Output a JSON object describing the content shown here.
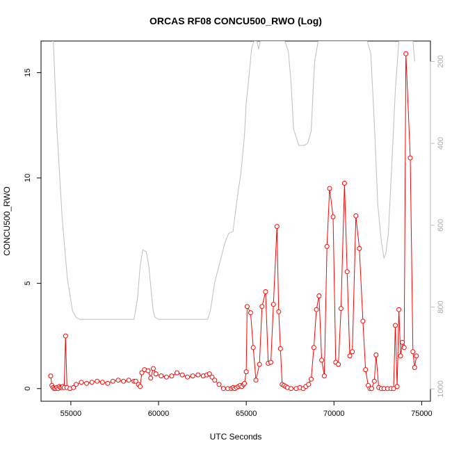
{
  "chart_data": {
    "type": "line",
    "title": "ORCAS RF08 CONCU500_RWO (Log)",
    "xlabel": "UTC Seconds",
    "ylabel": "CONCU500_RWO",
    "xlim": [
      53300,
      75500
    ],
    "ylim": [
      -0.6,
      16.5
    ],
    "xticks": [
      "55000",
      "60000",
      "65000",
      "70000",
      "75000"
    ],
    "yticks": [
      "0",
      "5",
      "10",
      "15"
    ],
    "right_axis": {
      "ylim": [
        1030,
        150
      ],
      "ticks": [
        "200",
        "400",
        "600",
        "800",
        "1000"
      ]
    },
    "colors": {
      "primary": "#ff0000",
      "secondary": "#bebebe"
    },
    "series": [
      {
        "style": "line+circles",
        "axis": "left",
        "x": [
          53850,
          53920,
          53990,
          54060,
          54130,
          54200,
          54270,
          54340,
          54410,
          54480,
          54550,
          54620,
          54700,
          54780,
          54950,
          55150,
          55300,
          55600,
          55900,
          56200,
          56500,
          56800,
          57100,
          57400,
          57700,
          58000,
          58300,
          58600,
          58700,
          58850,
          58950,
          59050,
          59200,
          59400,
          59550,
          59700,
          59850,
          60150,
          60450,
          60750,
          61050,
          61350,
          61650,
          61950,
          62250,
          62550,
          62750,
          62900,
          63050,
          63200,
          63450,
          63700,
          63950,
          64150,
          64250,
          64350,
          64450,
          64550,
          64650,
          64750,
          64850,
          64900,
          65000,
          65050,
          65250,
          65400,
          65550,
          65750,
          65900,
          66100,
          66250,
          66400,
          66550,
          66750,
          66850,
          66950,
          67050,
          67150,
          67250,
          67350,
          67550,
          67850,
          68050,
          68250,
          68400,
          68550,
          68700,
          68850,
          69000,
          69150,
          69300,
          69450,
          69600,
          69750,
          69950,
          70100,
          70250,
          70400,
          70600,
          70750,
          70900,
          71050,
          71250,
          71450,
          71650,
          71800,
          71950,
          72050,
          72150,
          72300,
          72400,
          72550,
          72700,
          72850,
          73050,
          73250,
          73400,
          73500,
          73600,
          73700,
          73800,
          73900,
          74000,
          74100,
          74350,
          74500,
          74600,
          74700
        ],
        "y": [
          0.6,
          0.15,
          0.05,
          0.0,
          0.0,
          0.05,
          0.0,
          0.1,
          0.05,
          0.05,
          0.1,
          0.05,
          2.5,
          0.05,
          0.0,
          0.05,
          0.2,
          0.3,
          0.25,
          0.3,
          0.35,
          0.3,
          0.25,
          0.35,
          0.4,
          0.35,
          0.4,
          0.35,
          0.35,
          0.2,
          0.1,
          0.75,
          0.9,
          0.85,
          0.5,
          0.95,
          0.7,
          0.6,
          0.55,
          0.6,
          0.75,
          0.65,
          0.55,
          0.6,
          0.65,
          0.6,
          0.65,
          0.7,
          0.55,
          0.4,
          0.2,
          0.0,
          0.0,
          0.0,
          0.05,
          0.0,
          0.05,
          0.1,
          0.15,
          0.1,
          0.2,
          0.25,
          0.8,
          3.9,
          3.6,
          1.95,
          0.4,
          1.15,
          3.9,
          4.6,
          1.2,
          1.25,
          4.0,
          7.7,
          3.65,
          1.9,
          0.2,
          0.15,
          0.1,
          0.05,
          0.0,
          0.0,
          0.05,
          0.0,
          0.1,
          0.2,
          0.45,
          1.95,
          3.75,
          4.4,
          1.35,
          0.6,
          6.75,
          9.5,
          8.15,
          1.25,
          1.15,
          3.8,
          9.75,
          5.55,
          1.55,
          1.75,
          8.2,
          6.65,
          3.2,
          0.9,
          0.15,
          0.0,
          0.0,
          0.35,
          1.6,
          0.05,
          0.0,
          0.0,
          0.0,
          0.0,
          0.0,
          3.0,
          0.1,
          3.75,
          1.55,
          2.2,
          1.95,
          15.9,
          10.95,
          1.75,
          1.0,
          1.55
        ]
      },
      {
        "style": "line",
        "axis": "right",
        "x": [
          53950,
          54000,
          54200,
          54500,
          54800,
          55100,
          55300,
          55500,
          56000,
          57000,
          58000,
          58600,
          58800,
          58950,
          59100,
          59300,
          59450,
          59600,
          59700,
          59800,
          60000,
          61000,
          62000,
          62800,
          62950,
          63200,
          63500,
          63800,
          64000,
          64250,
          64350,
          64500,
          64700,
          64900,
          65000,
          65150,
          65300,
          65400,
          65450,
          65600,
          65700,
          65800,
          66000,
          66500,
          67000,
          67200,
          67400,
          67550,
          67700,
          68000,
          68100,
          68300,
          68500,
          68700,
          68800,
          68900,
          69100,
          69300,
          69500,
          69700,
          69900,
          70100,
          70300,
          70500,
          70700,
          70900,
          71100,
          71300,
          71500,
          71700,
          71900,
          72100,
          72300,
          72500,
          72700,
          72850,
          72950,
          73100,
          73300,
          73500,
          73700,
          73900,
          74100,
          74300,
          74500,
          74600
        ],
        "y": [
          150,
          150,
          360,
          580,
          730,
          810,
          825,
          830,
          830,
          830,
          830,
          830,
          780,
          700,
          660,
          665,
          700,
          770,
          810,
          825,
          830,
          830,
          830,
          830,
          810,
          740,
          690,
          640,
          620,
          615,
          580,
          530,
          470,
          380,
          300,
          240,
          170,
          155,
          150,
          150,
          170,
          150,
          150,
          150,
          150,
          150,
          175,
          250,
          365,
          405,
          405,
          405,
          400,
          370,
          280,
          200,
          150,
          150,
          150,
          150,
          150,
          150,
          150,
          150,
          150,
          150,
          150,
          150,
          150,
          150,
          150,
          180,
          350,
          550,
          640,
          680,
          670,
          620,
          450,
          270,
          150,
          150,
          150,
          150,
          150,
          200
        ]
      }
    ]
  }
}
